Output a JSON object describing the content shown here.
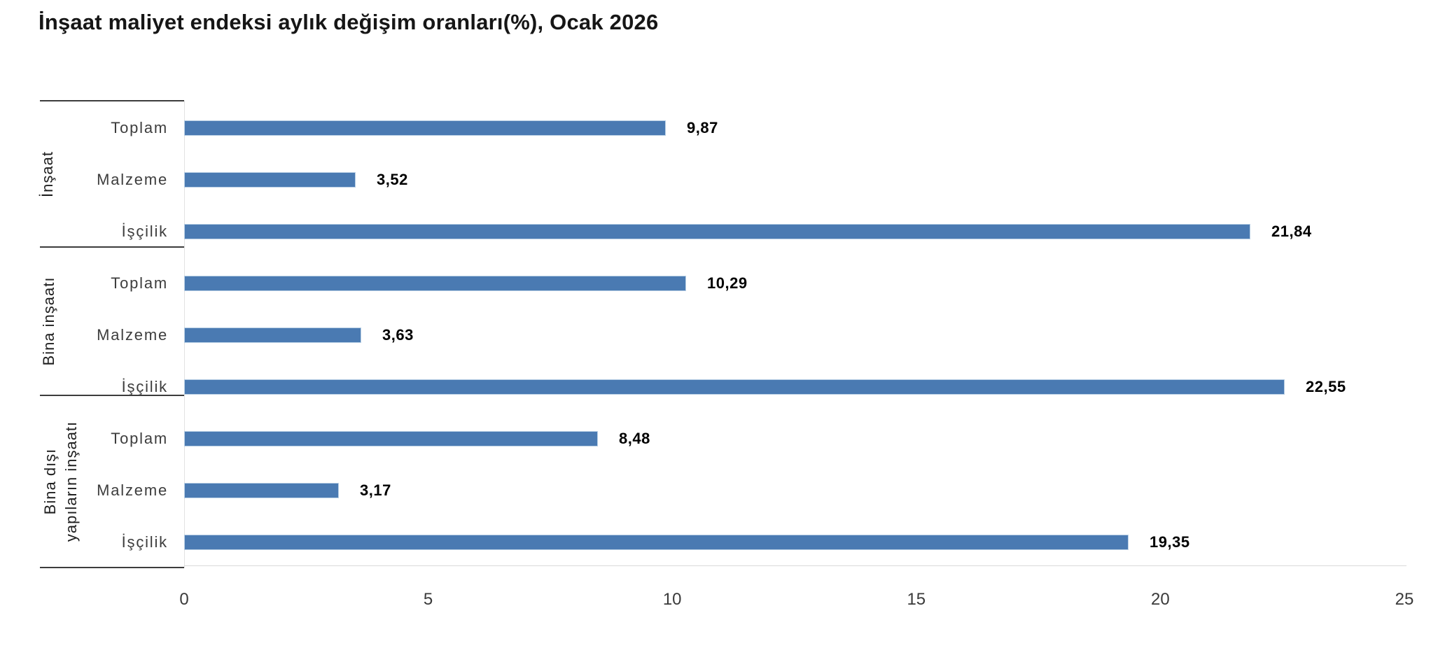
{
  "title": "İnşaat maliyet endeksi aylık değişim oranları(%), Ocak 2026",
  "chart_data": {
    "type": "bar",
    "orientation": "horizontal",
    "title": "İnşaat maliyet endeksi aylık değişim oranları(%), Ocak 2026",
    "xlabel": "",
    "ylabel": "",
    "xlim": [
      0,
      25
    ],
    "x_ticks": [
      "0",
      "5",
      "10",
      "15",
      "20",
      "25"
    ],
    "grid": "off",
    "legend": "none",
    "bar_color": "#4a7ab2",
    "bar_border_color": "#b7cee4",
    "value_decimal_separator": ",",
    "groups": [
      {
        "label": "İnşaat",
        "label_lines": [
          "İnşaat"
        ],
        "items": [
          {
            "label": "Toplam",
            "value": 9.87,
            "value_label": "9,87"
          },
          {
            "label": "Malzeme",
            "value": 3.52,
            "value_label": "3,52"
          },
          {
            "label": "İşçilik",
            "value": 21.84,
            "value_label": "21,84"
          }
        ]
      },
      {
        "label": "Bina inşaatı",
        "label_lines": [
          "Bina inşaatı"
        ],
        "items": [
          {
            "label": "Toplam",
            "value": 10.29,
            "value_label": "10,29"
          },
          {
            "label": "Malzeme",
            "value": 3.63,
            "value_label": "3,63"
          },
          {
            "label": "İşçilik",
            "value": 22.55,
            "value_label": "22,55"
          }
        ]
      },
      {
        "label": "Bina dışı yapıların inşaatı",
        "label_lines": [
          "Bina dışı",
          "yapıların inşaatı"
        ],
        "items": [
          {
            "label": "Toplam",
            "value": 8.48,
            "value_label": "8,48"
          },
          {
            "label": "Malzeme",
            "value": 3.17,
            "value_label": "3,17"
          },
          {
            "label": "İşçilik",
            "value": 19.35,
            "value_label": "19,35"
          }
        ]
      }
    ]
  }
}
